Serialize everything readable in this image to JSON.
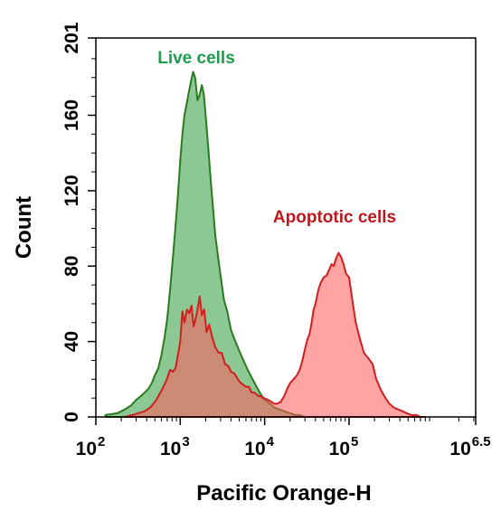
{
  "chart_data": {
    "type": "area",
    "xlabel": "Pacific Orange-H",
    "ylabel": "Count",
    "xscale": "log10",
    "xlim": [
      100,
      3162277.66
    ],
    "ylim": [
      0,
      201
    ],
    "grid": false,
    "x_ticks": [
      {
        "base": "10",
        "exp": "2"
      },
      {
        "base": "10",
        "exp": "3"
      },
      {
        "base": "10",
        "exp": "4"
      },
      {
        "base": "10",
        "exp": "5"
      },
      {
        "base": "10",
        "exp": "6.5"
      }
    ],
    "y_ticks": [
      "0",
      "40",
      "80",
      "120",
      "160",
      "201"
    ],
    "annotations": [
      {
        "text": "Live cells",
        "color": "#1e9e4a"
      },
      {
        "text": "Apoptotic cells",
        "color": "#c0171c"
      }
    ],
    "series": [
      {
        "fill": "#2e9a3c",
        "stroke": "#2a7a1e",
        "x": [
          130,
          180,
          220,
          260,
          300,
          340,
          380,
          420,
          460,
          500,
          550,
          600,
          650,
          700,
          760,
          820,
          880,
          940,
          1000,
          1060,
          1120,
          1180,
          1260,
          1340,
          1420,
          1500,
          1600,
          1700,
          1800,
          1900,
          2000,
          2150,
          2300,
          2450,
          2600,
          2800,
          3000,
          3300,
          3600,
          4000,
          4500,
          5000,
          5600,
          6300,
          7000,
          8000,
          9000,
          10000,
          11500,
          13000,
          15000,
          17000,
          20000,
          23000,
          26000,
          30000
        ],
        "y": [
          1,
          2,
          4,
          6,
          9,
          11,
          13,
          15,
          18,
          22,
          26,
          33,
          42,
          52,
          68,
          85,
          102,
          118,
          136,
          150,
          160,
          165,
          172,
          178,
          183,
          180,
          168,
          171,
          176,
          171,
          160,
          142,
          125,
          110,
          96,
          85,
          75,
          62,
          56,
          46,
          40,
          35,
          30,
          25,
          21,
          16,
          12,
          9,
          7,
          5,
          4,
          3,
          2,
          1,
          1,
          0
        ]
      },
      {
        "fill": "#ff5a5a",
        "stroke": "#d41e1e",
        "x": [
          220,
          270,
          320,
          380,
          440,
          520,
          600,
          680,
          760,
          820,
          880,
          940,
          1000,
          1060,
          1120,
          1200,
          1280,
          1360,
          1440,
          1520,
          1600,
          1700,
          1800,
          1920,
          2050,
          2200,
          2400,
          2600,
          2850,
          3100,
          3400,
          3700,
          4000,
          4400,
          4800,
          5200,
          5600,
          6000,
          6500,
          7000,
          7500,
          8000,
          8500,
          9000,
          9500,
          10000,
          11000,
          12000,
          13000,
          14000,
          15500,
          17000,
          18500,
          20000,
          22000,
          24000,
          26000,
          28000,
          30000,
          32000,
          34000,
          36000,
          38000,
          40000,
          43000,
          46000,
          50000,
          54000,
          58000,
          62000,
          66000,
          70000,
          75000,
          80000,
          86000,
          92000,
          100000,
          110000,
          120000,
          135000,
          150000,
          170000,
          190000,
          210000,
          240000,
          270000,
          300000,
          340000,
          380000,
          430000,
          480000,
          550000,
          630000,
          700000,
          800000
        ],
        "y": [
          0,
          1,
          2,
          3,
          5,
          9,
          14,
          19,
          25,
          24,
          26,
          33,
          40,
          56,
          50,
          57,
          55,
          59,
          48,
          52,
          57,
          64,
          54,
          57,
          45,
          49,
          42,
          37,
          34,
          34,
          28,
          27,
          24,
          23,
          20,
          18,
          17,
          16,
          16,
          13,
          13,
          12,
          11,
          11,
          10,
          10,
          9,
          8,
          7,
          7,
          8,
          11,
          15,
          18,
          20,
          22,
          25,
          30,
          36,
          41,
          44,
          50,
          57,
          60,
          67,
          71,
          74,
          75,
          78,
          81,
          80,
          84,
          87,
          85,
          81,
          76,
          74,
          61,
          50,
          41,
          34,
          31,
          28,
          20,
          14,
          10,
          7,
          5,
          4,
          3,
          2,
          1,
          1,
          0,
          0
        ]
      }
    ]
  }
}
